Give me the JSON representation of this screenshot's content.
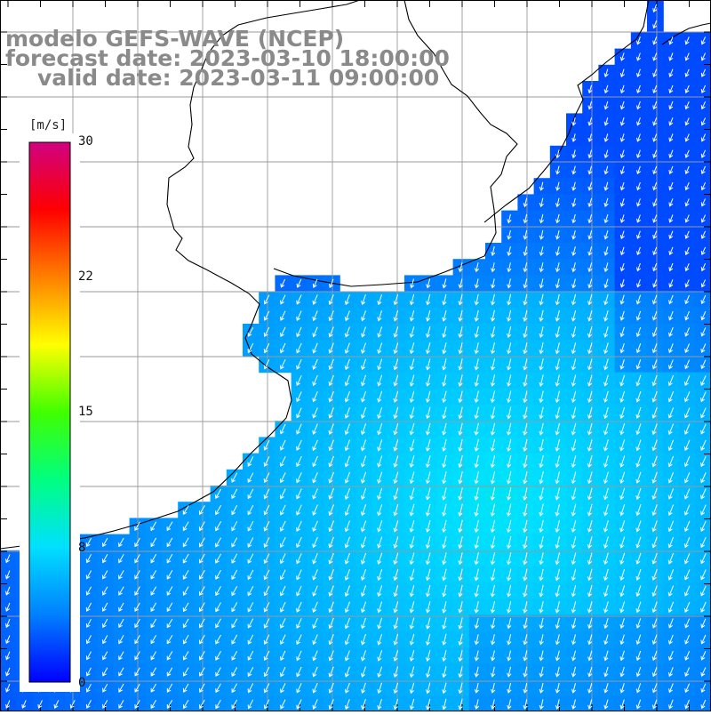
{
  "title": {
    "line1": "modelo GEFS-WAVE (NCEP)",
    "line2": "forecast date: 2023-03-10 18:00:00",
    "line3": "valid date: 2023-03-11 09:00:00"
  },
  "colorbar": {
    "unit": "[m/s]",
    "min": 0,
    "max": 30,
    "ticks": [
      "30",
      "22",
      "15",
      "8",
      "0"
    ],
    "tick_values": [
      30,
      22,
      15,
      8,
      0
    ],
    "colors": [
      "#0000ff",
      "#0080ff",
      "#00e0ff",
      "#00ff80",
      "#40ff00",
      "#ffff00",
      "#ff8000",
      "#ff0000",
      "#d00080"
    ]
  },
  "map": {
    "field": "wind speed",
    "land_color": "#ffffff",
    "coast_color": "#000000",
    "grid_color": "#9a9a9a",
    "arrow_color": "#ffffff",
    "wind_direction": "from north-east toward south-west",
    "speed_range_ms": [
      2,
      8
    ]
  }
}
